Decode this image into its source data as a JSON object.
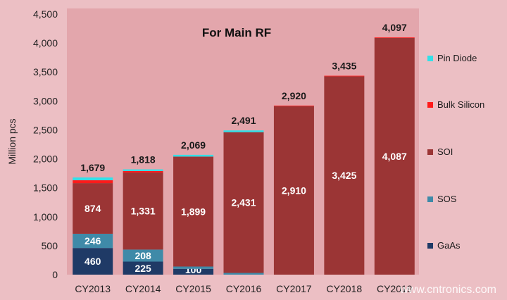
{
  "chart_data": {
    "type": "bar",
    "stacked": true,
    "title": "For Main RF",
    "ylabel": "Million pcs",
    "ylim": [
      0,
      4500
    ],
    "yticks": [
      "0",
      "500",
      "1,000",
      "1,500",
      "2,000",
      "2,500",
      "3,000",
      "3,500",
      "4,000",
      "4,500"
    ],
    "ytick_values": [
      0,
      500,
      1000,
      1500,
      2000,
      2500,
      3000,
      3500,
      4000,
      4500
    ],
    "categories": [
      "CY2013",
      "CY2014",
      "CY2015",
      "CY2016",
      "CY2017",
      "CY2018",
      "CY2019"
    ],
    "totals": [
      1679,
      1818,
      2069,
      2491,
      2920,
      3435,
      4097
    ],
    "total_labels": [
      "1,679",
      "1,818",
      "2,069",
      "2,491",
      "2,920",
      "3,435",
      "4,097"
    ],
    "series": [
      {
        "name": "GaAs",
        "color": "#1f3a66",
        "values": [
          460,
          225,
          100,
          0,
          0,
          0,
          0
        ],
        "labels": [
          "460",
          "225",
          "100",
          "",
          "",
          "",
          ""
        ]
      },
      {
        "name": "SOS",
        "color": "#3f8aa8",
        "values": [
          246,
          208,
          40,
          30,
          0,
          0,
          0
        ],
        "labels": [
          "246",
          "208",
          "",
          "",
          "",
          "",
          ""
        ]
      },
      {
        "name": "SOI",
        "color": "#9b3535",
        "values": [
          874,
          1331,
          1899,
          2431,
          2910,
          3425,
          4087
        ],
        "labels": [
          "874",
          "1,331",
          "1,899",
          "2,431",
          "2,910",
          "3,425",
          "4,087"
        ]
      },
      {
        "name": "Bulk Silicon",
        "color": "#ff1a1a",
        "values": [
          50,
          25,
          0,
          0,
          10,
          10,
          10
        ],
        "labels": [
          "",
          "",
          "",
          "",
          "",
          "",
          ""
        ]
      },
      {
        "name": "Pin Diode",
        "color": "#33e0e8",
        "values": [
          49,
          29,
          30,
          30,
          0,
          0,
          0
        ],
        "labels": [
          "",
          "",
          "",
          "",
          "",
          "",
          ""
        ]
      }
    ],
    "legend_order": [
      "Pin Diode",
      "Bulk Silicon",
      "SOI",
      "SOS",
      "GaAs"
    ],
    "legend_position": "right",
    "grid": false
  },
  "watermark": "www.cntronics.com"
}
